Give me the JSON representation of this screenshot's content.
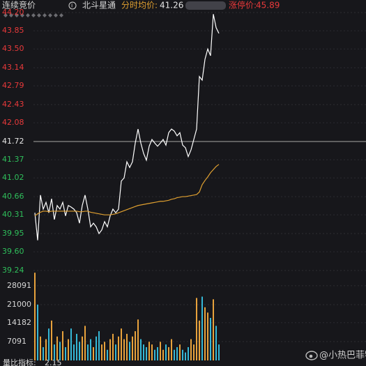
{
  "header": {
    "status": "连续竞价",
    "stock": "北斗星通",
    "mode": "分时",
    "avg_label": "均价:",
    "avg_value": 41.26,
    "limit_label": "涨停价:",
    "limit_value": 45.89
  },
  "chart_data": [
    {
      "type": "line",
      "grid": true,
      "ylim": [
        39.24,
        44.2
      ],
      "yticks": [
        {
          "value": 44.2,
          "label": "44.20"
        },
        43.85,
        {
          "value": 43.5,
          "label": "43.50"
        },
        43.14,
        42.79,
        42.43,
        42.08,
        41.72,
        41.37,
        41.02,
        40.66,
        40.31,
        39.95,
        {
          "value": 39.6,
          "label": "39.60"
        },
        39.24
      ],
      "tick_colors": {
        "up": "#e8393a",
        "flat": "#e6e6e6",
        "down": "#2fbf5b"
      },
      "series": [
        {
          "color": "#ffffff",
          "values": [
            40.35,
            39.82,
            40.69,
            40.42,
            40.55,
            40.35,
            40.62,
            40.22,
            40.49,
            40.42,
            40.55,
            40.29,
            40.49,
            40.46,
            40.42,
            40.35,
            40.15,
            40.49,
            40.69,
            40.42,
            40.08,
            40.15,
            40.08,
            39.95,
            40.02,
            40.18,
            40.08,
            40.29,
            40.42,
            40.35,
            40.42,
            40.96,
            41.02,
            41.33,
            41.22,
            41.33,
            41.69,
            41.96,
            41.69,
            41.49,
            41.36,
            41.63,
            41.76,
            41.69,
            41.63,
            41.69,
            41.76,
            41.65,
            41.89,
            41.96,
            41.92,
            41.83,
            41.89,
            41.65,
            41.6,
            41.43,
            41.56,
            41.76,
            41.96,
            42.97,
            42.9,
            43.3,
            43.5,
            43.37,
            44.17,
            43.91,
            43.8
          ]
        },
        {
          "color": "#e0a030",
          "values": [
            40.29,
            40.33,
            40.36,
            40.38,
            40.38,
            40.37,
            40.38,
            40.38,
            40.38,
            40.38,
            40.38,
            40.38,
            40.38,
            40.38,
            40.38,
            40.38,
            40.37,
            40.37,
            40.38,
            40.38,
            40.36,
            40.35,
            40.34,
            40.33,
            40.32,
            40.31,
            40.31,
            40.31,
            40.32,
            40.33,
            40.35,
            40.37,
            40.39,
            40.41,
            40.43,
            40.45,
            40.47,
            40.49,
            40.5,
            40.51,
            40.52,
            40.53,
            40.54,
            40.55,
            40.56,
            40.57,
            40.57,
            40.58,
            40.59,
            40.61,
            40.62,
            40.64,
            40.65,
            40.66,
            40.66,
            40.67,
            40.68,
            40.69,
            40.7,
            40.75,
            40.89,
            40.97,
            41.04,
            41.12,
            41.18,
            41.24,
            41.28
          ]
        }
      ]
    },
    {
      "type": "bar",
      "grid": true,
      "ylim": [
        0,
        32000
      ],
      "yticks": [
        7091,
        14182,
        21000,
        28091
      ],
      "up_color": "#e8a23c",
      "down_color": "#35b8d6",
      "values": [
        33000,
        21000,
        9000,
        5000,
        8000,
        12000,
        15000,
        6000,
        9000,
        7000,
        11000,
        5000,
        8000,
        12000,
        6000,
        10000,
        7000,
        9000,
        13000,
        6000,
        8000,
        5000,
        9000,
        11000,
        6000,
        7000,
        4000,
        8000,
        10000,
        6000,
        9000,
        12000,
        8000,
        10000,
        7000,
        9000,
        11000,
        15400,
        8000,
        6000,
        5000,
        7000,
        6000,
        4000,
        5000,
        7000,
        4000,
        6000,
        5000,
        8000,
        4000,
        5000,
        6000,
        4000,
        3000,
        5000,
        8000,
        6000,
        23500,
        15000,
        24000,
        20000,
        18000,
        16000,
        23000,
        13000,
        6000
      ]
    }
  ],
  "footer": {
    "indicator_label": "量比指标:",
    "indicator_value": 2.15,
    "watermark": "@小热巴菲特"
  }
}
